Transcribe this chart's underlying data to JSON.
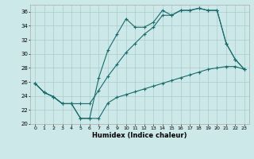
{
  "xlabel": "Humidex (Indice chaleur)",
  "background_color": "#cde8e8",
  "grid_color": "#aacccc",
  "line_color": "#1a6b6b",
  "xlim": [
    -0.5,
    23.5
  ],
  "ylim": [
    20,
    37
  ],
  "yticks": [
    20,
    22,
    24,
    26,
    28,
    30,
    32,
    34,
    36
  ],
  "xticks": [
    0,
    1,
    2,
    3,
    4,
    5,
    6,
    7,
    8,
    9,
    10,
    11,
    12,
    13,
    14,
    15,
    16,
    17,
    18,
    19,
    20,
    21,
    22,
    23
  ],
  "series1_x": [
    0,
    1,
    2,
    3,
    4,
    5,
    6,
    7,
    8,
    9,
    10,
    11,
    12,
    13,
    14,
    15,
    16,
    17,
    18,
    19,
    20,
    21,
    22,
    23
  ],
  "series1_y": [
    25.8,
    24.5,
    23.9,
    22.9,
    22.9,
    20.8,
    20.8,
    20.8,
    23.0,
    23.8,
    24.2,
    24.6,
    25.0,
    25.4,
    25.8,
    26.2,
    26.6,
    27.0,
    27.4,
    27.8,
    28.0,
    28.2,
    28.2,
    27.8
  ],
  "series2_x": [
    0,
    1,
    2,
    3,
    4,
    5,
    6,
    7,
    8,
    9,
    10,
    11,
    12,
    13,
    14,
    15,
    16,
    17,
    18,
    19,
    20,
    21,
    22,
    23
  ],
  "series2_y": [
    25.8,
    24.5,
    23.9,
    22.9,
    22.9,
    20.8,
    20.8,
    26.6,
    30.5,
    32.8,
    35.0,
    33.8,
    33.8,
    34.5,
    36.2,
    35.5,
    36.2,
    36.2,
    36.5,
    36.2,
    36.2,
    31.5,
    29.2,
    27.8
  ],
  "series3_x": [
    0,
    1,
    2,
    3,
    4,
    5,
    6,
    7,
    8,
    9,
    10,
    11,
    12,
    13,
    14,
    15,
    16,
    17,
    18,
    19,
    20,
    21,
    22,
    23
  ],
  "series3_y": [
    25.8,
    24.5,
    23.9,
    22.9,
    22.9,
    22.9,
    22.9,
    24.8,
    26.8,
    28.5,
    30.2,
    31.5,
    32.8,
    33.8,
    35.5,
    35.5,
    36.2,
    36.2,
    36.5,
    36.2,
    36.2,
    31.5,
    29.2,
    27.8
  ]
}
